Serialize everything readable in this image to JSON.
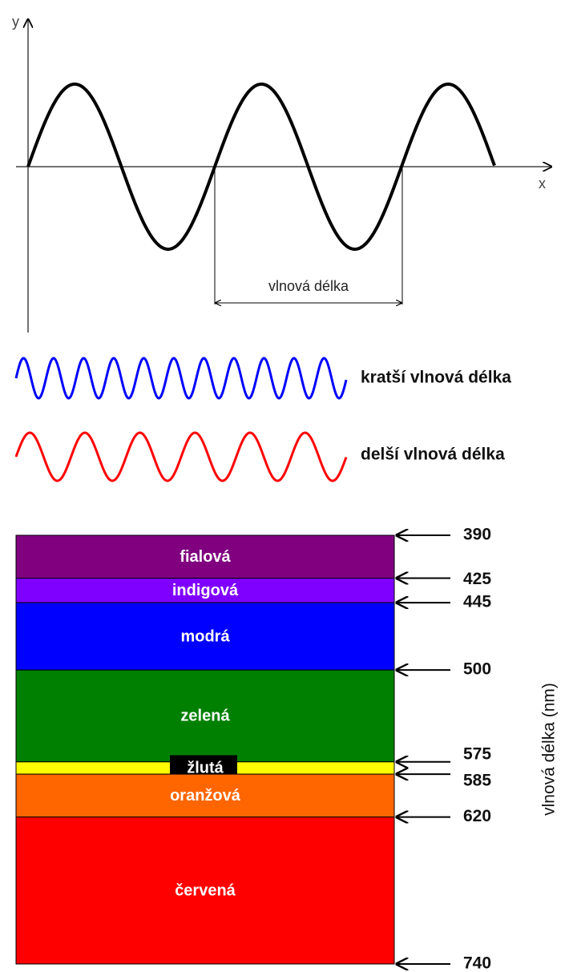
{
  "wave_diagram": {
    "y_axis": "y",
    "x_axis": "x",
    "wavelength_label": "vlnová délka"
  },
  "legend": [
    {
      "label": "kratší vlnová délka",
      "color": "#0000ff"
    },
    {
      "label": "delší vlnová délka",
      "color": "#ff0000"
    }
  ],
  "spectrum": {
    "axis_label": "vlnová délka (nm)",
    "boundaries": [
      390,
      425,
      445,
      500,
      575,
      585,
      620,
      740
    ],
    "bands": [
      {
        "name": "fialová",
        "color": "#800080"
      },
      {
        "name": "indigová",
        "color": "#7f00ff"
      },
      {
        "name": "modrá",
        "color": "#0000ff"
      },
      {
        "name": "zelená",
        "color": "#008000"
      },
      {
        "name": "žlutá",
        "color": "#ffff00"
      },
      {
        "name": "oranžová",
        "color": "#ff6600"
      },
      {
        "name": "červená",
        "color": "#ff0000"
      }
    ]
  }
}
